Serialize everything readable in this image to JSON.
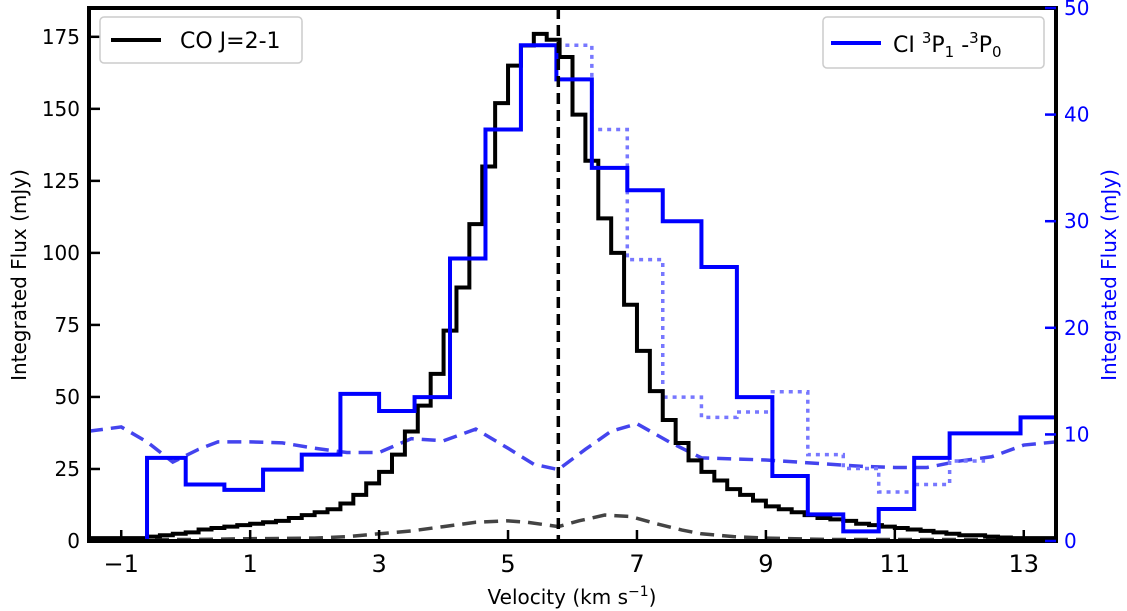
{
  "chart_data": {
    "type": "line",
    "xlabel_main": "Velocity (km s",
    "xlabel_sup": "−1",
    "xlabel_close": ")",
    "ylabel_left": "Integrated Flux (mJy)",
    "ylabel_right": "Integrated Flux (mJy)",
    "xlim": [
      -1.5,
      13.5
    ],
    "ylim_left": [
      0,
      185
    ],
    "ylim_right": [
      0,
      50
    ],
    "x_ticks": [
      -1,
      1,
      3,
      5,
      7,
      9,
      11,
      13
    ],
    "x_tick_labels": [
      "−1",
      "1",
      "3",
      "5",
      "7",
      "9",
      "11",
      "13"
    ],
    "y_left_ticks": [
      0,
      25,
      50,
      75,
      100,
      125,
      150,
      175
    ],
    "y_left_tick_labels": [
      "0",
      "25",
      "50",
      "75",
      "100",
      "125",
      "150",
      "175"
    ],
    "y_right_ticks": [
      0,
      10,
      20,
      30,
      40,
      50
    ],
    "y_right_tick_labels": [
      "0",
      "10",
      "20",
      "30",
      "40",
      "50"
    ],
    "vline_x": 5.78,
    "colors": {
      "co": "#000000",
      "ci": "#0000ff",
      "ci_dotted": "#7777ff",
      "ci_dashed": "#4444ee",
      "co_dashed": "#444444",
      "right_axis": "#0000ff"
    },
    "legend_left": {
      "label": "CO J=2-1",
      "position": "top-left"
    },
    "legend_right": {
      "label_prefix": "CI ",
      "sup1": "3",
      "p1": "P",
      "sub1": "1",
      "dash": " -",
      "sup2": "3",
      "p2": "P",
      "sub2": "0",
      "position": "top-right"
    },
    "series": [
      {
        "name": "CO J=2-1",
        "axis": "left",
        "style": "steps-solid",
        "edges": [
          -1.5,
          -1.2,
          -1.0,
          -0.8,
          -0.6,
          -0.4,
          -0.2,
          0.0,
          0.2,
          0.4,
          0.6,
          0.8,
          1.0,
          1.2,
          1.4,
          1.6,
          1.8,
          2.0,
          2.2,
          2.4,
          2.6,
          2.8,
          3.0,
          3.2,
          3.4,
          3.6,
          3.8,
          4.0,
          4.2,
          4.4,
          4.6,
          4.8,
          5.0,
          5.2,
          5.4,
          5.6,
          5.8,
          6.0,
          6.2,
          6.4,
          6.6,
          6.8,
          7.0,
          7.2,
          7.4,
          7.6,
          7.8,
          8.0,
          8.2,
          8.4,
          8.6,
          8.8,
          9.0,
          9.2,
          9.4,
          9.6,
          9.8,
          10.0,
          10.2,
          10.4,
          10.6,
          10.8,
          11.0,
          11.2,
          11.4,
          11.6,
          11.8,
          12.0,
          12.2,
          12.4,
          12.6,
          12.8,
          13.0,
          13.2,
          13.5
        ],
        "values": [
          1,
          1,
          1,
          1,
          1.5,
          2,
          2.5,
          3,
          4,
          4.5,
          5,
          5.5,
          6,
          6.5,
          7,
          8,
          9,
          10,
          11,
          13,
          16,
          20,
          24,
          30,
          38,
          47,
          58,
          73,
          88,
          110,
          130,
          152,
          165,
          172,
          176,
          174,
          168,
          148,
          132,
          112,
          100,
          82,
          66,
          52,
          42,
          34,
          28,
          24,
          21,
          18,
          16,
          14,
          12,
          11,
          10,
          9,
          8,
          7.5,
          7,
          6,
          5.5,
          5,
          4.5,
          4,
          3.5,
          3,
          2.5,
          2,
          2,
          1.5,
          1.2,
          1,
          1,
          1
        ]
      },
      {
        "name": "CI 3P1-3P0",
        "axis": "right",
        "style": "steps-solid",
        "edges": [
          -1.5,
          -0.6,
          0.0,
          0.6,
          1.2,
          1.8,
          2.4,
          3.0,
          3.55,
          4.1,
          4.65,
          5.2,
          5.75,
          6.3,
          6.85,
          7.4,
          8.0,
          8.55,
          9.1,
          9.65,
          10.2,
          10.75,
          11.3,
          11.85,
          12.4,
          12.95,
          13.5
        ],
        "values": [
          0,
          7.8,
          5.3,
          4.8,
          6.7,
          8.1,
          13.8,
          12.2,
          13.5,
          26.5,
          38.6,
          46.5,
          43.3,
          35,
          32.9,
          30,
          25.7,
          13.5,
          6.1,
          2.5,
          0.9,
          3,
          7.8,
          10.1,
          10.1,
          11.6
        ]
      },
      {
        "name": "CI dotted",
        "axis": "right",
        "style": "steps-dotted",
        "edges": [
          5.75,
          6.3,
          6.85,
          7.4,
          8.0,
          8.55,
          9.1,
          9.65,
          10.2,
          10.75,
          11.3,
          11.85,
          12.4
        ],
        "values": [
          46.5,
          38.6,
          26.4,
          13.5,
          11.6,
          12.1,
          14.0,
          8.1,
          6.8,
          4.6,
          5.3,
          7.5
        ]
      },
      {
        "name": "CI dashed",
        "axis": "right",
        "style": "dashed",
        "x": [
          -1.5,
          -1.0,
          -0.6,
          -0.2,
          0.2,
          0.5,
          1.0,
          1.5,
          2.0,
          2.5,
          3.0,
          3.5,
          4.0,
          4.5,
          5.0,
          5.4,
          5.78,
          6.2,
          6.6,
          7.0,
          7.5,
          8.0,
          8.5,
          9.0,
          9.5,
          10.0,
          10.5,
          11.0,
          11.5,
          12.0,
          12.5,
          13.0,
          13.5
        ],
        "y": [
          10.3,
          10.7,
          9.3,
          7.4,
          8.6,
          9.3,
          9.3,
          9.2,
          8.7,
          8.3,
          8.3,
          9.6,
          9.4,
          10.5,
          8.7,
          7.2,
          6.7,
          8.6,
          10.3,
          11.0,
          9.3,
          7.8,
          7.7,
          7.6,
          7.4,
          7.2,
          7.0,
          6.9,
          6.9,
          7.5,
          7.9,
          9.0,
          9.3
        ]
      },
      {
        "name": "CO dashed",
        "axis": "left",
        "style": "dashed",
        "x": [
          -1.5,
          -1.0,
          0.0,
          1.0,
          2.0,
          2.5,
          3.0,
          3.5,
          4.0,
          4.5,
          5.0,
          5.3,
          5.78,
          6.1,
          6.5,
          6.9,
          7.3,
          7.7,
          8.0,
          8.5,
          9.0,
          10.0,
          11.0,
          12.0,
          13.0,
          13.5
        ],
        "y": [
          0.5,
          0.5,
          0.5,
          0.8,
          1,
          1.5,
          2.5,
          3.5,
          5,
          6.5,
          7,
          6.5,
          5,
          7,
          9,
          8.5,
          6,
          3.8,
          2.5,
          1.5,
          1,
          0.5,
          0.5,
          0.5,
          0.5,
          0.5
        ]
      }
    ]
  }
}
